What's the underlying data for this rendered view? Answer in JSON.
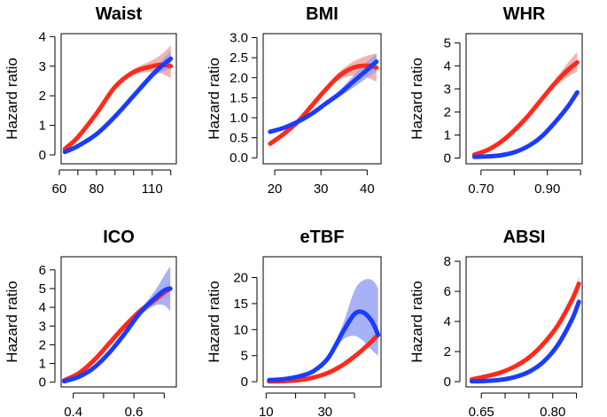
{
  "chart_data": [
    {
      "type": "line",
      "title": "Waist",
      "ylabel": "Hazard ratio",
      "xlabel": "",
      "xlim": [
        61,
        123
      ],
      "ylim": [
        -0.3,
        4.1
      ],
      "xticks": [
        60,
        70,
        80,
        90,
        100,
        110,
        120
      ],
      "xtick_labels": [
        "60",
        "",
        "80",
        "",
        "",
        "110",
        ""
      ],
      "yticks": [
        0,
        1,
        2,
        3,
        4
      ],
      "ytick_labels": [
        "0",
        "1",
        "2",
        "3",
        "4"
      ],
      "series": [
        {
          "name": "red",
          "color": "#ff2a1a",
          "x": [
            63,
            70,
            80,
            90,
            100,
            110,
            115,
            120
          ],
          "y": [
            0.2,
            0.6,
            1.4,
            2.3,
            2.8,
            3.0,
            3.05,
            3.0
          ],
          "ci_lower": [
            0.15,
            0.5,
            1.3,
            2.2,
            2.7,
            2.8,
            2.75,
            2.6
          ],
          "ci_upper": [
            0.25,
            0.7,
            1.5,
            2.4,
            2.9,
            3.2,
            3.4,
            3.7
          ]
        },
        {
          "name": "blue",
          "color": "#1a3cff",
          "x": [
            63,
            70,
            80,
            90,
            100,
            110,
            115,
            120
          ],
          "y": [
            0.1,
            0.3,
            0.7,
            1.3,
            2.0,
            2.7,
            3.0,
            3.25
          ],
          "ci_lower": [
            0.08,
            0.27,
            0.65,
            1.25,
            1.95,
            2.6,
            2.8,
            2.9
          ],
          "ci_upper": [
            0.12,
            0.33,
            0.75,
            1.35,
            2.05,
            2.8,
            3.2,
            3.5
          ]
        }
      ]
    },
    {
      "type": "line",
      "title": "BMI",
      "ylabel": "Hazard ratio",
      "xlabel": "",
      "xlim": [
        17.5,
        43
      ],
      "ylim": [
        -0.15,
        3.1
      ],
      "xticks": [
        20,
        30,
        40
      ],
      "xtick_labels": [
        "20",
        "30",
        "40"
      ],
      "yticks": [
        0,
        0.5,
        1,
        1.5,
        2,
        2.5,
        3
      ],
      "ytick_labels": [
        "0.0",
        "0.5",
        "1.0",
        "1.5",
        "2.0",
        "2.5",
        "3.0"
      ],
      "series": [
        {
          "name": "red",
          "color": "#ff2a1a",
          "x": [
            19,
            22,
            25,
            28,
            31,
            34,
            37,
            40,
            42
          ],
          "y": [
            0.35,
            0.6,
            0.9,
            1.3,
            1.7,
            2.05,
            2.25,
            2.3,
            2.25
          ],
          "ci_lower": [
            0.3,
            0.55,
            0.87,
            1.27,
            1.65,
            1.95,
            2.05,
            2.0,
            1.9
          ],
          "ci_upper": [
            0.4,
            0.65,
            0.93,
            1.33,
            1.75,
            2.15,
            2.4,
            2.55,
            2.6
          ]
        },
        {
          "name": "blue",
          "color": "#1a3cff",
          "x": [
            19,
            22,
            25,
            28,
            31,
            34,
            37,
            40,
            42
          ],
          "y": [
            0.65,
            0.75,
            0.9,
            1.1,
            1.35,
            1.6,
            1.9,
            2.2,
            2.4
          ],
          "ci_lower": [
            0.62,
            0.73,
            0.88,
            1.07,
            1.3,
            1.52,
            1.75,
            2.0,
            2.15
          ],
          "ci_upper": [
            0.68,
            0.77,
            0.92,
            1.13,
            1.4,
            1.68,
            2.05,
            2.4,
            2.6
          ]
        }
      ]
    },
    {
      "type": "line",
      "title": "WHR",
      "ylabel": "Hazard ratio",
      "xlabel": "",
      "xlim": [
        0.655,
        1.005
      ],
      "ylim": [
        -0.25,
        5.4
      ],
      "xticks": [
        0.7,
        0.8,
        0.9,
        1.0
      ],
      "xtick_labels": [
        "0.70",
        "",
        "0.90",
        ""
      ],
      "yticks": [
        0,
        1,
        2,
        3,
        4,
        5
      ],
      "ytick_labels": [
        "0",
        "1",
        "2",
        "3",
        "4",
        "5"
      ],
      "series": [
        {
          "name": "red",
          "color": "#ff2a1a",
          "x": [
            0.68,
            0.72,
            0.76,
            0.8,
            0.84,
            0.88,
            0.92,
            0.96,
            0.99
          ],
          "y": [
            0.15,
            0.35,
            0.7,
            1.2,
            1.8,
            2.5,
            3.2,
            3.8,
            4.15
          ],
          "ci_lower": [
            0.12,
            0.32,
            0.67,
            1.15,
            1.75,
            2.42,
            3.05,
            3.5,
            3.75
          ],
          "ci_upper": [
            0.18,
            0.38,
            0.73,
            1.25,
            1.85,
            2.58,
            3.35,
            4.1,
            4.6
          ]
        },
        {
          "name": "blue",
          "color": "#1a3cff",
          "x": [
            0.68,
            0.72,
            0.76,
            0.8,
            0.84,
            0.88,
            0.92,
            0.96,
            0.99
          ],
          "y": [
            0.05,
            0.07,
            0.12,
            0.25,
            0.5,
            0.9,
            1.5,
            2.2,
            2.85
          ],
          "ci_lower": [
            0.05,
            0.07,
            0.12,
            0.25,
            0.5,
            0.9,
            1.5,
            2.2,
            2.85
          ],
          "ci_upper": [
            0.05,
            0.07,
            0.12,
            0.25,
            0.5,
            0.9,
            1.5,
            2.2,
            2.85
          ]
        }
      ]
    },
    {
      "type": "line",
      "title": "ICO",
      "ylabel": "Hazard ratio",
      "xlabel": "",
      "xlim": [
        0.36,
        0.74
      ],
      "ylim": [
        -0.25,
        6.7
      ],
      "xticks": [
        0.4,
        0.5,
        0.6,
        0.7
      ],
      "xtick_labels": [
        "0.4",
        "",
        "0.6",
        ""
      ],
      "yticks": [
        0,
        1,
        2,
        3,
        4,
        5,
        6
      ],
      "ytick_labels": [
        "0",
        "1",
        "2",
        "3",
        "4",
        "5",
        "6"
      ],
      "series": [
        {
          "name": "red",
          "color": "#ff2a1a",
          "x": [
            0.37,
            0.42,
            0.47,
            0.52,
            0.57,
            0.62,
            0.67,
            0.7,
            0.72
          ],
          "y": [
            0.1,
            0.5,
            1.2,
            2.1,
            3.0,
            3.8,
            4.4,
            4.8,
            5.0
          ],
          "ci_lower": [
            0.08,
            0.48,
            1.17,
            2.07,
            2.95,
            3.7,
            4.2,
            4.45,
            4.5
          ],
          "ci_upper": [
            0.12,
            0.52,
            1.23,
            2.13,
            3.05,
            3.9,
            4.6,
            5.1,
            5.4
          ]
        },
        {
          "name": "blue",
          "color": "#1a3cff",
          "x": [
            0.37,
            0.42,
            0.47,
            0.52,
            0.57,
            0.62,
            0.67,
            0.7,
            0.72
          ],
          "y": [
            0.05,
            0.3,
            0.8,
            1.6,
            2.6,
            3.7,
            4.5,
            4.9,
            5.0
          ],
          "ci_lower": [
            0.03,
            0.25,
            0.73,
            1.5,
            2.5,
            3.55,
            4.1,
            4.1,
            3.8
          ],
          "ci_upper": [
            0.07,
            0.35,
            0.87,
            1.7,
            2.7,
            3.85,
            4.9,
            5.7,
            6.2
          ]
        }
      ]
    },
    {
      "type": "line",
      "title": "eTBF",
      "ylabel": "Hazard ratio",
      "xlabel": "",
      "xlim": [
        9,
        49
      ],
      "ylim": [
        -1,
        24
      ],
      "xticks": [
        10,
        20,
        30,
        40
      ],
      "xtick_labels": [
        "10",
        "",
        "30",
        ""
      ],
      "yticks": [
        0,
        5,
        10,
        15,
        20
      ],
      "ytick_labels": [
        "0",
        "5",
        "10",
        "15",
        "20"
      ],
      "series": [
        {
          "name": "red",
          "color": "#ff2a1a",
          "x": [
            11,
            16,
            21,
            26,
            31,
            36,
            41,
            45,
            48
          ],
          "y": [
            0.05,
            0.1,
            0.3,
            0.8,
            1.7,
            3.2,
            5.3,
            7.3,
            9.0
          ],
          "ci_lower": [
            0.05,
            0.1,
            0.3,
            0.8,
            1.6,
            3.0,
            4.9,
            6.6,
            7.8
          ],
          "ci_upper": [
            0.05,
            0.1,
            0.3,
            0.8,
            1.8,
            3.4,
            5.7,
            8.0,
            10.2
          ]
        },
        {
          "name": "blue",
          "color": "#1a3cff",
          "x": [
            11,
            16,
            21,
            26,
            31,
            36,
            40,
            43,
            46,
            48
          ],
          "y": [
            0.3,
            0.5,
            1.0,
            2.0,
            4.5,
            9.5,
            13.0,
            13.3,
            11.5,
            9.0
          ],
          "ci_lower": [
            0.25,
            0.45,
            0.9,
            1.8,
            4.1,
            8.0,
            8.8,
            7.8,
            6.0,
            5.0
          ],
          "ci_upper": [
            0.35,
            0.55,
            1.1,
            2.2,
            4.9,
            11.0,
            17.5,
            19.5,
            19.5,
            18.0
          ]
        }
      ]
    },
    {
      "type": "line",
      "title": "ABSI",
      "ylabel": "Hazard ratio",
      "xlabel": "",
      "xlim": [
        0.618,
        0.862
      ],
      "ylim": [
        -0.35,
        8.3
      ],
      "xticks": [
        0.65,
        0.7,
        0.75,
        0.8,
        0.85
      ],
      "xtick_labels": [
        "0.65",
        "",
        "",
        "0.80",
        ""
      ],
      "yticks": [
        0,
        2,
        4,
        6,
        8
      ],
      "ytick_labels": [
        "0",
        "2",
        "4",
        "6",
        "8"
      ],
      "series": [
        {
          "name": "red",
          "color": "#ff2a1a",
          "x": [
            0.63,
            0.66,
            0.69,
            0.72,
            0.75,
            0.78,
            0.81,
            0.84,
            0.855
          ],
          "y": [
            0.15,
            0.35,
            0.6,
            1.0,
            1.6,
            2.5,
            3.7,
            5.4,
            6.5
          ],
          "ci_lower": [
            0.13,
            0.33,
            0.58,
            0.97,
            1.55,
            2.42,
            3.55,
            5.1,
            6.0
          ],
          "ci_upper": [
            0.17,
            0.37,
            0.62,
            1.03,
            1.65,
            2.58,
            3.85,
            5.7,
            7.0
          ]
        },
        {
          "name": "blue",
          "color": "#1a3cff",
          "x": [
            0.63,
            0.66,
            0.69,
            0.72,
            0.75,
            0.78,
            0.81,
            0.84,
            0.855
          ],
          "y": [
            0.02,
            0.05,
            0.12,
            0.3,
            0.65,
            1.3,
            2.4,
            4.1,
            5.3
          ],
          "ci_lower": [
            0.02,
            0.05,
            0.12,
            0.3,
            0.63,
            1.26,
            2.3,
            3.9,
            5.0
          ],
          "ci_upper": [
            0.02,
            0.05,
            0.12,
            0.3,
            0.67,
            1.34,
            2.5,
            4.3,
            5.6
          ]
        }
      ]
    }
  ],
  "band_colors": {
    "red": "#f4a5a5",
    "blue": "#9aa3f5"
  }
}
